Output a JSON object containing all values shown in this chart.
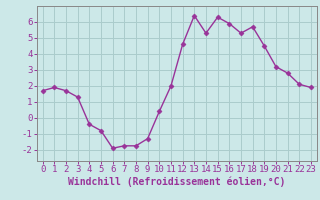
{
  "x": [
    0,
    1,
    2,
    3,
    4,
    5,
    6,
    7,
    8,
    9,
    10,
    11,
    12,
    13,
    14,
    15,
    16,
    17,
    18,
    19,
    20,
    21,
    22,
    23
  ],
  "y": [
    1.7,
    1.9,
    1.7,
    1.3,
    -0.4,
    -0.8,
    -1.9,
    -1.75,
    -1.75,
    -1.3,
    0.4,
    2.0,
    4.6,
    6.4,
    5.3,
    6.3,
    5.9,
    5.3,
    5.7,
    4.5,
    3.2,
    2.8,
    2.1,
    1.9
  ],
  "line_color": "#993399",
  "marker": "D",
  "markersize": 2.5,
  "linewidth": 1.0,
  "bg_color": "#cce8e8",
  "grid_color": "#aacccc",
  "xlabel": "Windchill (Refroidissement éolien,°C)",
  "xlabel_fontsize": 7,
  "xtick_labels": [
    "0",
    "1",
    "2",
    "3",
    "4",
    "5",
    "6",
    "7",
    "8",
    "9",
    "10",
    "11",
    "12",
    "13",
    "14",
    "15",
    "16",
    "17",
    "18",
    "19",
    "20",
    "21",
    "22",
    "23"
  ],
  "yticks": [
    -2,
    -1,
    0,
    1,
    2,
    3,
    4,
    5,
    6
  ],
  "ylim": [
    -2.7,
    7.0
  ],
  "xlim": [
    -0.5,
    23.5
  ],
  "tick_fontsize": 6.5,
  "spine_color": "#888888"
}
